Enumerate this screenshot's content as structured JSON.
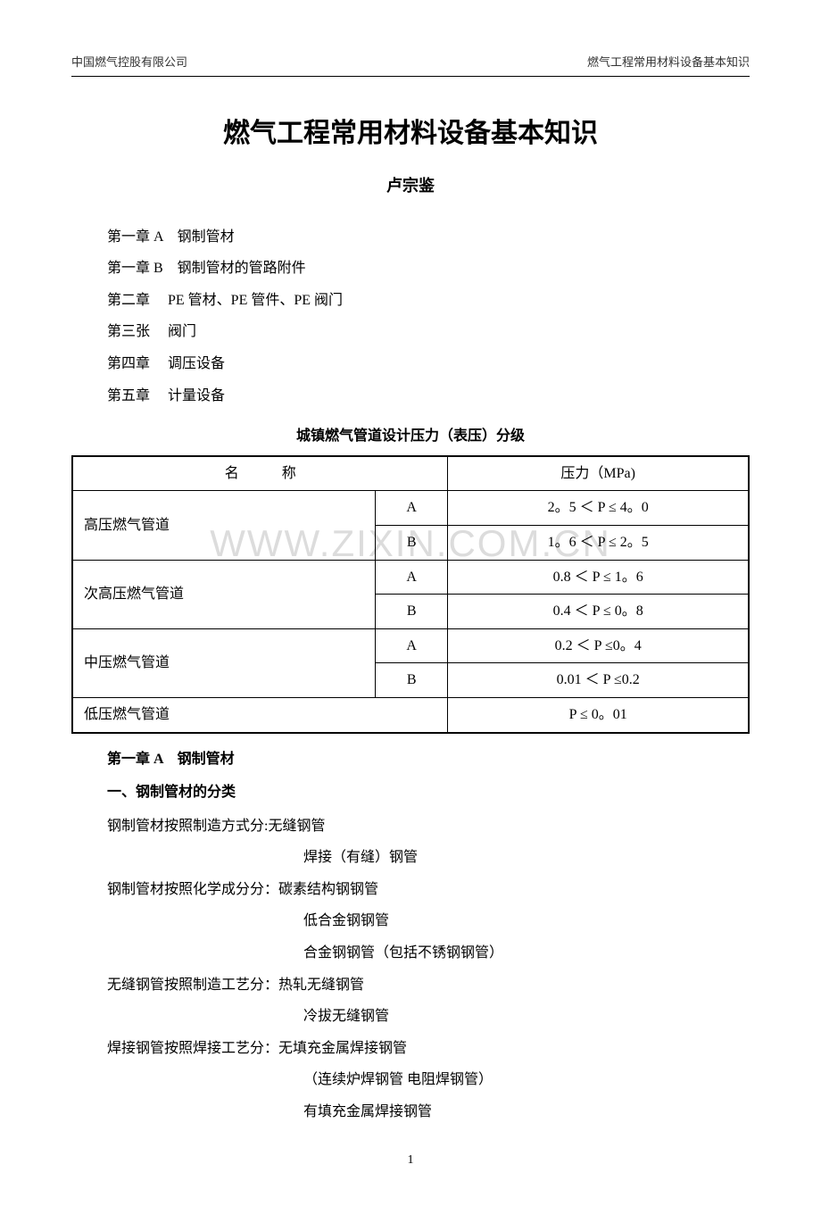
{
  "header": {
    "left": "中国燃气控股有限公司",
    "right": "燃气工程常用材料设备基本知识"
  },
  "title": "燃气工程常用材料设备基本知识",
  "author": "卢宗鉴",
  "toc": [
    "第一章 A　钢制管材",
    "第一章 B　钢制管材的管路附件",
    "第二章　 PE 管材、PE 管件、PE 阀门",
    "第三张　 阀门",
    "第四章　 调压设备",
    "第五章　 计量设备"
  ],
  "table": {
    "title": "城镇燃气管道设计压力（表压）分级",
    "columns": {
      "name": "名　　　称",
      "pressure": "压力（MPa)"
    },
    "rows": [
      {
        "label": "高压燃气管道",
        "sub": "A",
        "value": "2。5 ＜ P ≤ 4。0"
      },
      {
        "label": "",
        "sub": "B",
        "value": "1。6 ＜ P ≤ 2。5"
      },
      {
        "label": "次高压燃气管道",
        "sub": "A",
        "value": "0.8 ＜ P ≤ 1。6"
      },
      {
        "label": "",
        "sub": "B",
        "value": "0.4 ＜ P ≤ 0。8"
      },
      {
        "label": "中压燃气管道",
        "sub": "A",
        "value": "0.2 ＜ P ≤0。4"
      },
      {
        "label": "",
        "sub": "B",
        "value": "0.01 ＜ P ≤0.2"
      },
      {
        "label": "低压燃气管道",
        "sub": "",
        "value": "P ≤ 0。01"
      }
    ],
    "border_color": "#000000",
    "background_color": "#ffffff"
  },
  "sections": {
    "chapter_heading": "第一章 A　钢制管材",
    "sub_heading": "一、钢制管材的分类",
    "lines": [
      "钢制管材按照制造方式分:无缝钢管",
      "焊接（有缝）钢管",
      "钢制管材按照化学成分分：碳素结构钢钢管",
      "低合金钢钢管",
      "合金钢钢管（包括不锈钢钢管）",
      "无缝钢管按照制造工艺分：热轧无缝钢管",
      "冷拔无缝钢管",
      "焊接钢管按照焊接工艺分：无填充金属焊接钢管",
      "（连续炉焊钢管 电阻焊钢管）",
      "有填充金属焊接钢管"
    ],
    "line_indents": [
      "body",
      "indent",
      "body",
      "indent",
      "indent",
      "body",
      "indent",
      "body",
      "indent",
      "indent"
    ]
  },
  "page_number": "1",
  "watermark": "WWW.ZIXIN.COM.CN",
  "colors": {
    "text": "#000000",
    "background": "#ffffff",
    "watermark": "#dcdcdc"
  }
}
